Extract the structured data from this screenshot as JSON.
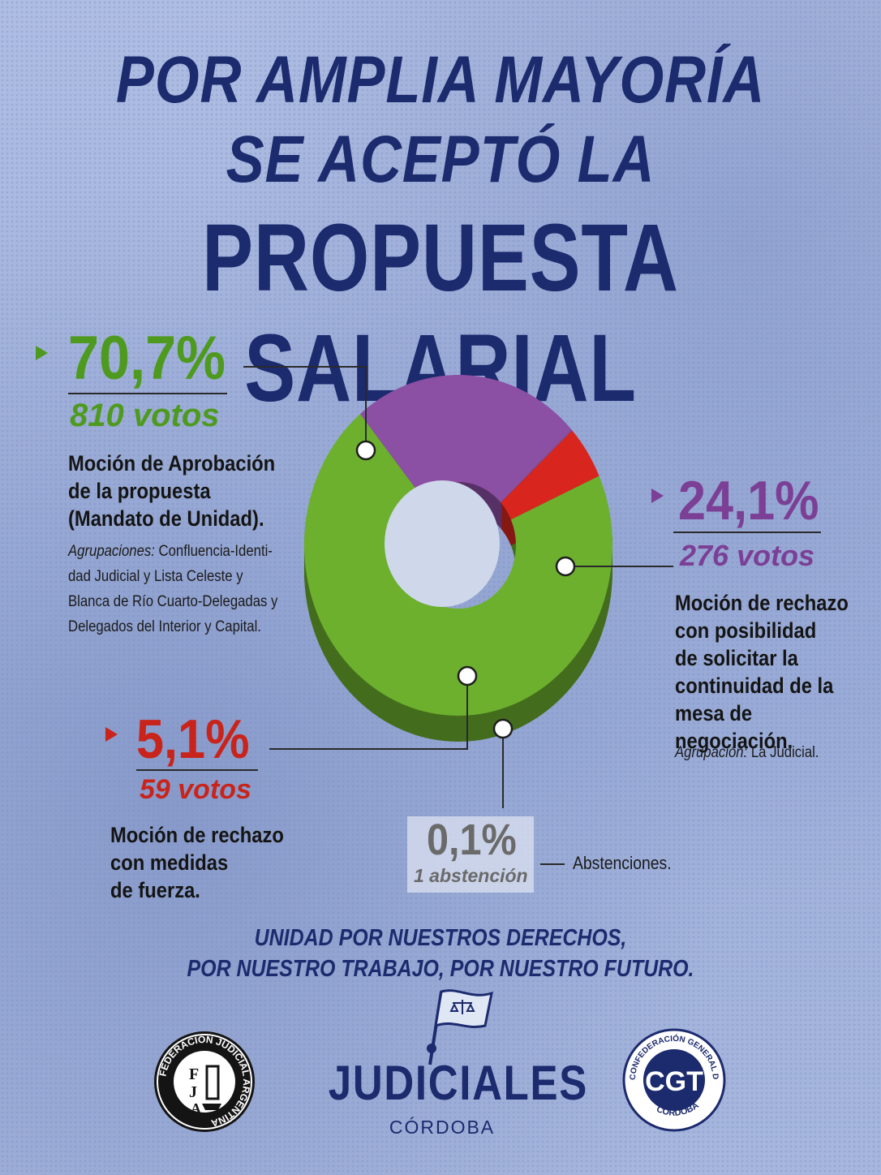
{
  "header": {
    "line1": "POR AMPLIA MAYORÍA",
    "line2": "SE ACEPTÓ LA",
    "line3": "PROPUESTA SALARIAL"
  },
  "chart_data": {
    "type": "pie",
    "style": "3d-donut",
    "slices": [
      {
        "label": "Moción de Aprobación de la propuesta (Mandato de Unidad).",
        "value": 70.7,
        "votes": 810,
        "color": "#6cb02e"
      },
      {
        "label": "Moción de rechazo con posibilidad de solicitar la continuidad de la mesa de negociación.",
        "value": 24.1,
        "votes": 276,
        "color": "#8b4fa3"
      },
      {
        "label": "Abstenciones.",
        "value": 0.1,
        "votes": 1,
        "color": "#7a55a0"
      },
      {
        "label": "Moción de rechazo con medidas de fuerza.",
        "value": 5.1,
        "votes": 59,
        "color": "#d8261e"
      }
    ]
  },
  "callouts": {
    "approve": {
      "pct": "70,7%",
      "votes": "810 votos",
      "desc": [
        "Moción de Aprobación",
        "de la propuesta",
        "(Mandato de Unidad)."
      ],
      "note_label": "Agrupaciones:",
      "note": [
        " Confluencia-Identi-",
        "dad Judicial y Lista Celeste y",
        "Blanca de Río Cuarto-Delegadas y",
        "Delegados del Interior y Capital."
      ],
      "color": "#4e9a1f"
    },
    "reject_continue": {
      "pct": "24,1%",
      "votes": "276 votos",
      "desc": [
        "Moción de rechazo",
        "con posibilidad",
        "de solicitar la",
        "continuidad de la",
        "mesa de negociación."
      ],
      "note_label": "Agrupación:",
      "note": " La Judicial.",
      "color": "#7b3f95"
    },
    "reject_force": {
      "pct": "5,1%",
      "votes": "59 votos",
      "desc": [
        "Moción de rechazo",
        "con medidas",
        "de fuerza."
      ],
      "color": "#c8241b"
    },
    "abstain": {
      "pct": "0,1%",
      "votes": "1 abstención",
      "desc": "Abstenciones.",
      "color": "#6a6a6a"
    }
  },
  "slogan": {
    "line1": "UNIDAD POR NUESTROS DERECHOS,",
    "line2": "POR NUESTRO TRABAJO, POR NUESTRO FUTURO."
  },
  "logos": {
    "left_ring": "FEDERACIÓN JUDICIAL ARGENTINA",
    "left_letters": [
      "F",
      "J",
      "A"
    ],
    "brand": "JUDICIALES",
    "brand_sub": "CÓRDOBA",
    "right_ring_top": "CONFEDERACIÓN GENERAL DEL TRABAJO",
    "right_ring_bottom": "CÓRDOBA",
    "right_letters": "CGT"
  }
}
